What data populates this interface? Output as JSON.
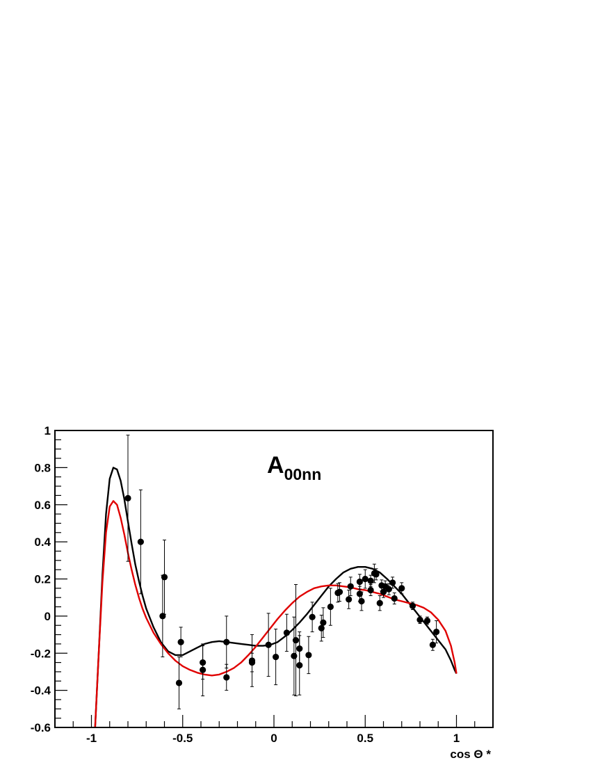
{
  "chart_data": {
    "type": "scatter",
    "title": "A",
    "title_subscript": "00nn",
    "xlabel": "cos Θ *",
    "ylabel": "",
    "xlim": [
      -1.2,
      1.2
    ],
    "ylim": [
      -0.6,
      1.0
    ],
    "x_ticks": [
      -1,
      -0.5,
      0,
      0.5,
      1
    ],
    "x_tick_labels": [
      "-1",
      "-0.5",
      "0",
      "0.5",
      "1"
    ],
    "y_ticks": [
      -0.6,
      -0.4,
      -0.2,
      0,
      0.2,
      0.4,
      0.6,
      0.8,
      1.0
    ],
    "y_tick_labels": [
      "-0.6",
      "-0.4",
      "-0.2",
      "0",
      "0.2",
      "0.4",
      "0.6",
      "0.8",
      "1"
    ],
    "grid": false,
    "colors": {
      "data": "#000000",
      "curve_black": "#000000",
      "curve_red": "#e00000"
    },
    "series": [
      {
        "kind": "points_with_errors",
        "color": "#000000",
        "points": [
          {
            "x": -0.8,
            "y": 0.635,
            "err": 0.34
          },
          {
            "x": -0.73,
            "y": 0.4,
            "err": 0.28
          },
          {
            "x": -0.61,
            "y": 0.0,
            "err": 0.22
          },
          {
            "x": -0.6,
            "y": 0.21,
            "err": 0.2
          },
          {
            "x": -0.52,
            "y": -0.36,
            "err": 0.14
          },
          {
            "x": -0.51,
            "y": -0.14,
            "err": 0.08
          },
          {
            "x": -0.39,
            "y": -0.25,
            "err": 0.09
          },
          {
            "x": -0.39,
            "y": -0.29,
            "err": 0.14
          },
          {
            "x": -0.26,
            "y": -0.14,
            "err": 0.14
          },
          {
            "x": -0.26,
            "y": -0.33,
            "err": 0.07
          },
          {
            "x": -0.12,
            "y": -0.24,
            "err": 0.14
          },
          {
            "x": -0.12,
            "y": -0.25,
            "err": 0.05
          },
          {
            "x": -0.03,
            "y": -0.155,
            "err": 0.17
          },
          {
            "x": 0.01,
            "y": -0.22,
            "err": 0.15
          },
          {
            "x": 0.07,
            "y": -0.09,
            "err": 0.1
          },
          {
            "x": 0.11,
            "y": -0.215,
            "err": 0.21
          },
          {
            "x": 0.12,
            "y": -0.13,
            "err": 0.3
          },
          {
            "x": 0.14,
            "y": -0.175,
            "err": 0.09
          },
          {
            "x": 0.14,
            "y": -0.265,
            "err": 0.16
          },
          {
            "x": 0.19,
            "y": -0.21,
            "err": 0.1
          },
          {
            "x": 0.21,
            "y": -0.005,
            "err": 0.08
          },
          {
            "x": 0.26,
            "y": -0.065,
            "err": 0.07
          },
          {
            "x": 0.27,
            "y": -0.035,
            "err": 0.08
          },
          {
            "x": 0.31,
            "y": 0.05,
            "err": 0.1
          },
          {
            "x": 0.35,
            "y": 0.125,
            "err": 0.05
          },
          {
            "x": 0.36,
            "y": 0.13,
            "err": 0.05
          },
          {
            "x": 0.41,
            "y": 0.09,
            "err": 0.05
          },
          {
            "x": 0.42,
            "y": 0.16,
            "err": 0.05
          },
          {
            "x": 0.47,
            "y": 0.185,
            "err": 0.04
          },
          {
            "x": 0.47,
            "y": 0.12,
            "err": 0.04
          },
          {
            "x": 0.48,
            "y": 0.08,
            "err": 0.05
          },
          {
            "x": 0.5,
            "y": 0.2,
            "err": 0.05
          },
          {
            "x": 0.53,
            "y": 0.14,
            "err": 0.03
          },
          {
            "x": 0.53,
            "y": 0.19,
            "err": 0.03
          },
          {
            "x": 0.55,
            "y": 0.23,
            "err": 0.05
          },
          {
            "x": 0.56,
            "y": 0.225,
            "err": 0.03
          },
          {
            "x": 0.58,
            "y": 0.07,
            "err": 0.04
          },
          {
            "x": 0.59,
            "y": 0.165,
            "err": 0.03
          },
          {
            "x": 0.6,
            "y": 0.13,
            "err": 0.03
          },
          {
            "x": 0.61,
            "y": 0.16,
            "err": 0.03
          },
          {
            "x": 0.63,
            "y": 0.145,
            "err": 0.03
          },
          {
            "x": 0.65,
            "y": 0.18,
            "err": 0.03
          },
          {
            "x": 0.66,
            "y": 0.095,
            "err": 0.03
          },
          {
            "x": 0.7,
            "y": 0.15,
            "err": 0.03
          },
          {
            "x": 0.76,
            "y": 0.055,
            "err": 0.02
          },
          {
            "x": 0.8,
            "y": -0.02,
            "err": 0.02
          },
          {
            "x": 0.84,
            "y": -0.025,
            "err": 0.02
          },
          {
            "x": 0.87,
            "y": -0.155,
            "err": 0.03
          },
          {
            "x": 0.89,
            "y": -0.085,
            "err": 0.06
          }
        ]
      },
      {
        "kind": "curve",
        "color": "#000000",
        "x": [
          -0.98,
          -0.96,
          -0.94,
          -0.92,
          -0.9,
          -0.88,
          -0.86,
          -0.84,
          -0.82,
          -0.8,
          -0.78,
          -0.76,
          -0.74,
          -0.72,
          -0.7,
          -0.66,
          -0.62,
          -0.58,
          -0.54,
          -0.5,
          -0.46,
          -0.42,
          -0.38,
          -0.34,
          -0.3,
          -0.26,
          -0.22,
          -0.18,
          -0.14,
          -0.1,
          -0.06,
          -0.02,
          0.02,
          0.06,
          0.1,
          0.14,
          0.18,
          0.22,
          0.26,
          0.3,
          0.34,
          0.38,
          0.42,
          0.46,
          0.5,
          0.54,
          0.58,
          0.62,
          0.66,
          0.7,
          0.74,
          0.78,
          0.82,
          0.86,
          0.9,
          0.94,
          0.97,
          0.99,
          1.0
        ],
        "y": [
          -0.6,
          -0.2,
          0.22,
          0.55,
          0.74,
          0.8,
          0.79,
          0.73,
          0.63,
          0.51,
          0.39,
          0.28,
          0.19,
          0.11,
          0.04,
          -0.06,
          -0.14,
          -0.19,
          -0.21,
          -0.21,
          -0.19,
          -0.17,
          -0.15,
          -0.14,
          -0.135,
          -0.14,
          -0.145,
          -0.15,
          -0.155,
          -0.16,
          -0.16,
          -0.155,
          -0.14,
          -0.11,
          -0.075,
          -0.035,
          0.01,
          0.06,
          0.11,
          0.16,
          0.2,
          0.235,
          0.255,
          0.265,
          0.265,
          0.255,
          0.235,
          0.2,
          0.16,
          0.12,
          0.07,
          0.02,
          -0.03,
          -0.08,
          -0.13,
          -0.18,
          -0.24,
          -0.29,
          -0.31
        ]
      },
      {
        "kind": "curve",
        "color": "#e00000",
        "x": [
          -0.98,
          -0.96,
          -0.94,
          -0.92,
          -0.9,
          -0.88,
          -0.86,
          -0.84,
          -0.82,
          -0.8,
          -0.78,
          -0.76,
          -0.74,
          -0.72,
          -0.7,
          -0.66,
          -0.62,
          -0.58,
          -0.54,
          -0.5,
          -0.46,
          -0.42,
          -0.38,
          -0.34,
          -0.3,
          -0.26,
          -0.22,
          -0.18,
          -0.14,
          -0.1,
          -0.06,
          -0.02,
          0.02,
          0.06,
          0.1,
          0.14,
          0.18,
          0.22,
          0.26,
          0.3,
          0.34,
          0.38,
          0.42,
          0.46,
          0.5,
          0.54,
          0.58,
          0.62,
          0.66,
          0.7,
          0.74,
          0.78,
          0.82,
          0.86,
          0.9,
          0.94,
          0.97,
          0.99,
          1.0
        ],
        "y": [
          -0.6,
          -0.2,
          0.18,
          0.45,
          0.59,
          0.62,
          0.6,
          0.53,
          0.44,
          0.34,
          0.25,
          0.17,
          0.1,
          0.04,
          -0.01,
          -0.09,
          -0.15,
          -0.2,
          -0.24,
          -0.27,
          -0.29,
          -0.305,
          -0.315,
          -0.32,
          -0.315,
          -0.3,
          -0.28,
          -0.25,
          -0.21,
          -0.165,
          -0.115,
          -0.065,
          -0.015,
          0.03,
          0.07,
          0.105,
          0.13,
          0.15,
          0.16,
          0.165,
          0.165,
          0.16,
          0.155,
          0.145,
          0.14,
          0.13,
          0.12,
          0.105,
          0.09,
          0.08,
          0.07,
          0.06,
          0.045,
          0.02,
          -0.02,
          -0.08,
          -0.16,
          -0.25,
          -0.31
        ]
      }
    ]
  }
}
